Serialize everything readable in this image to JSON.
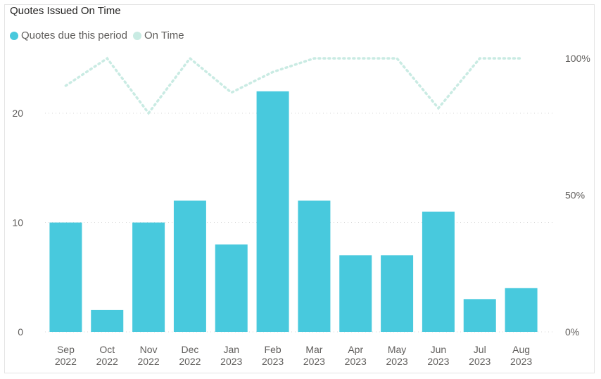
{
  "chart_data": {
    "type": "bar",
    "title": "Quotes Issued On Time",
    "categories": [
      [
        "Sep",
        "2022"
      ],
      [
        "Oct",
        "2022"
      ],
      [
        "Nov",
        "2022"
      ],
      [
        "Dec",
        "2022"
      ],
      [
        "Jan",
        "2023"
      ],
      [
        "Feb",
        "2023"
      ],
      [
        "Mar",
        "2023"
      ],
      [
        "Apr",
        "2023"
      ],
      [
        "May",
        "2023"
      ],
      [
        "Jun",
        "2023"
      ],
      [
        "Jul",
        "2023"
      ],
      [
        "Aug",
        "2023"
      ]
    ],
    "series": [
      {
        "name": "Quotes due this period",
        "type": "bar",
        "axis": "left",
        "color": "#48c9dd",
        "values": [
          10,
          2,
          10,
          12,
          8,
          22,
          12,
          7,
          7,
          11,
          3,
          4
        ]
      },
      {
        "name": "On Time",
        "type": "line",
        "axis": "right",
        "style": "dotted",
        "color": "#c9ebe3",
        "values": [
          0.9,
          1.0,
          0.8,
          1.0,
          0.875,
          0.95,
          1.0,
          1.0,
          1.0,
          0.818,
          1.0,
          1.0
        ]
      }
    ],
    "y_left": {
      "ticks": [
        "0",
        "10",
        "20"
      ],
      "tick_values": [
        0,
        10,
        20
      ],
      "range": [
        0,
        25
      ]
    },
    "y_right": {
      "ticks": [
        "0%",
        "50%",
        "100%"
      ],
      "tick_values": [
        0,
        0.5,
        1.0
      ],
      "range": [
        0,
        1.0
      ]
    },
    "grid": true,
    "legend_position": "top-left"
  }
}
